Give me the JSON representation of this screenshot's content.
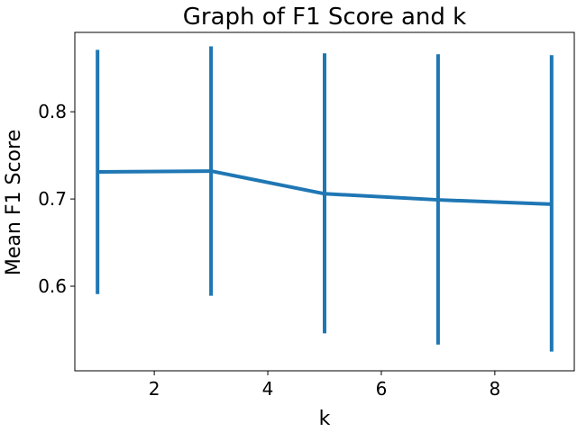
{
  "chart_data": {
    "type": "line",
    "title": "Graph of F1 Score and k",
    "xlabel": "k",
    "ylabel": "Mean F1 Score",
    "xlim": [
      0.6,
      9.4
    ],
    "ylim": [
      0.503,
      0.891
    ],
    "xticks": [
      2,
      4,
      6,
      8
    ],
    "yticks": [
      0.6,
      0.7,
      0.8
    ],
    "ytick_labels": [
      "0.6",
      "0.7",
      "0.8"
    ],
    "grid": false,
    "color": "#1f77b4",
    "series": [
      {
        "x": [
          1,
          3,
          5,
          7,
          9
        ],
        "y": [
          0.731,
          0.732,
          0.706,
          0.699,
          0.694
        ],
        "yerr_low": [
          0.591,
          0.589,
          0.546,
          0.533,
          0.525
        ],
        "yerr_high": [
          0.871,
          0.875,
          0.867,
          0.866,
          0.865
        ]
      }
    ]
  }
}
